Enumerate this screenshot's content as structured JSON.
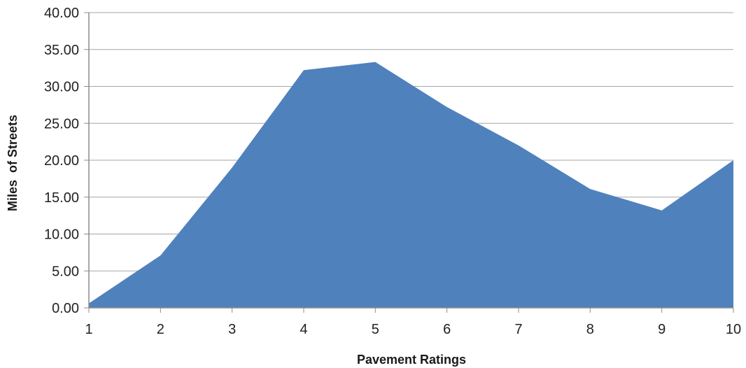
{
  "chart_data": {
    "type": "area",
    "x": [
      1,
      2,
      3,
      4,
      5,
      6,
      7,
      8,
      9,
      10
    ],
    "series": [
      {
        "values": [
          0.6,
          7.1,
          19.0,
          32.2,
          33.3,
          27.2,
          22.0,
          16.1,
          13.2,
          20.0
        ]
      }
    ],
    "title": "",
    "xlabel": "Pavement Ratings",
    "ylabel": "Miles  of Streets",
    "ylim": [
      0,
      40
    ],
    "yticks": [
      "0.00",
      "5.00",
      "10.00",
      "15.00",
      "20.00",
      "25.00",
      "30.00",
      "35.00",
      "40.00"
    ],
    "xticks": [
      "1",
      "2",
      "3",
      "4",
      "5",
      "6",
      "7",
      "8",
      "9",
      "10"
    ],
    "grid": true,
    "legend": "none",
    "colors": {
      "area": "#4f81bd",
      "grid": "#a6a6a6",
      "axis": "#8c8c8c"
    }
  }
}
